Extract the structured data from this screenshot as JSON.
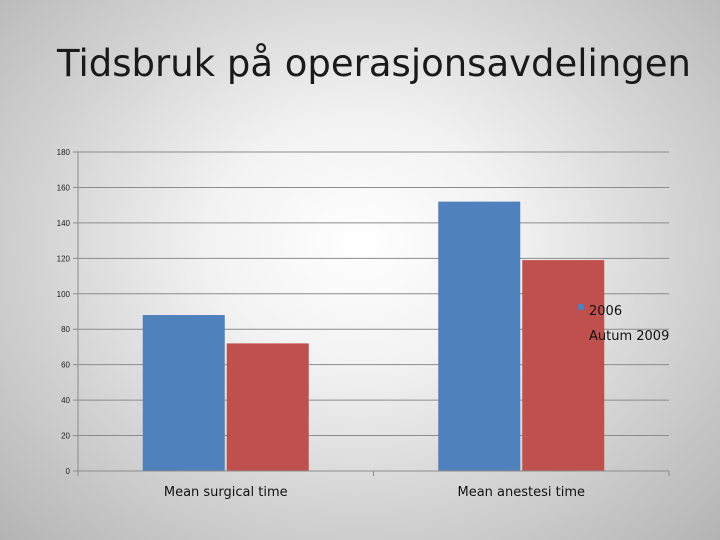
{
  "title": "Tidsbruk på operasjonsavdelingen",
  "chart_data": {
    "type": "bar",
    "categories": [
      "Mean surgical time",
      "Mean anestesi time"
    ],
    "series": [
      {
        "name": "2006",
        "values": [
          88,
          152
        ],
        "color": "#4f81bd"
      },
      {
        "name": "Autum 2009",
        "values": [
          72,
          119
        ],
        "color": "#c0504d"
      }
    ],
    "ylim": [
      0,
      180
    ],
    "yticks": [
      0,
      20,
      40,
      60,
      80,
      100,
      120,
      140,
      160,
      180
    ],
    "grid": true,
    "legend_position": "right"
  }
}
